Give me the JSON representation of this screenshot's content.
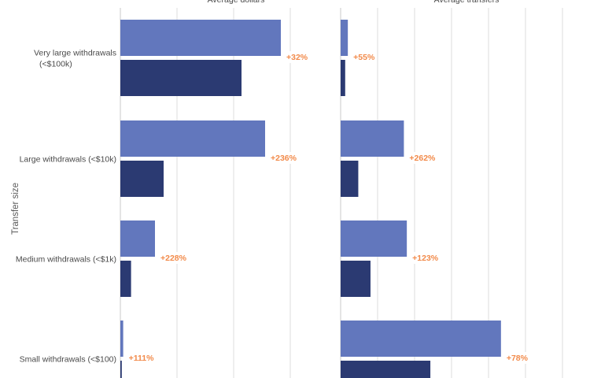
{
  "chart_data": {
    "type": "bar",
    "orientation": "horizontal",
    "ylabel": "Transfer size",
    "colors": {
      "earlier": "#6277bd",
      "later": "#2b3a72",
      "change_label": "#f28a4a",
      "grid": "#dcdcdc"
    },
    "categories": [
      {
        "label_lines": [
          "Very large withdrawals",
          "(<$100k)"
        ]
      },
      {
        "label_lines": [
          "Large withdrawals (<$10k)"
        ]
      },
      {
        "label_lines": [
          "Medium withdrawals (<$1k)"
        ]
      },
      {
        "label_lines": [
          "Small withdrawals (<$100)"
        ]
      }
    ],
    "panels": [
      {
        "title": "Average dollars",
        "earlier_values": [
          102,
          92,
          22,
          1.8
        ],
        "later_values": [
          77,
          27.5,
          6.8,
          0.9
        ],
        "change_labels": [
          "+32%",
          "+236%",
          "+228%",
          "+111%"
        ]
      },
      {
        "title": "Average transfers",
        "earlier_values": [
          4.9,
          43,
          45,
          109
        ],
        "later_values": [
          3.1,
          12,
          20.3,
          61
        ],
        "change_labels": [
          "+55%",
          "+262%",
          "+123%",
          "+78%"
        ]
      }
    ]
  }
}
